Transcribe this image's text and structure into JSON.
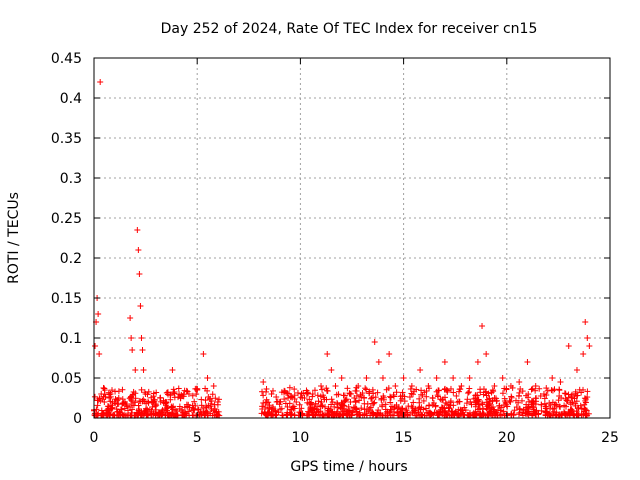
{
  "chart_data": {
    "type": "scatter",
    "title": "Day 252 of 2024, Rate Of TEC Index for receiver cn15",
    "xlabel": "GPS time / hours",
    "ylabel": "ROTI / TECUs",
    "xlim": [
      0,
      25
    ],
    "ylim": [
      0,
      0.45
    ],
    "x_ticks": [
      0,
      5,
      10,
      15,
      20,
      25
    ],
    "y_ticks": [
      0,
      0.05,
      0.1,
      0.15,
      0.2,
      0.25,
      0.3,
      0.35,
      0.4,
      0.45
    ],
    "x_tick_labels": [
      "0",
      "5",
      "10",
      "15",
      "20",
      "25"
    ],
    "y_tick_labels": [
      "0",
      "0.05",
      "0.1",
      "0.15",
      "0.2",
      "0.25",
      "0.3",
      "0.35",
      "0.4",
      "0.45"
    ],
    "grid": true,
    "marker": "+",
    "color": "#ff0000",
    "series": [
      {
        "name": "ROTI",
        "x": [
          0.05,
          0.1,
          0.15,
          0.2,
          0.25,
          0.3,
          0.35,
          0.5,
          0.8,
          1.0,
          1.2,
          1.5,
          1.75,
          1.8,
          1.85,
          2.0,
          2.1,
          2.15,
          2.2,
          2.25,
          2.3,
          2.35,
          2.4,
          2.5,
          2.8,
          3.2,
          3.5,
          3.8,
          4.2,
          4.6,
          5.0,
          5.3,
          5.5,
          5.8,
          6.0,
          8.2,
          8.6,
          9.0,
          9.4,
          9.8,
          10.2,
          10.6,
          11.0,
          11.3,
          11.5,
          11.7,
          12.0,
          12.4,
          12.8,
          13.2,
          13.6,
          13.8,
          14.0,
          14.3,
          14.6,
          15.0,
          15.4,
          15.8,
          16.2,
          16.6,
          17.0,
          17.4,
          17.8,
          18.2,
          18.6,
          18.8,
          19.0,
          19.4,
          19.8,
          20.2,
          20.6,
          21.0,
          21.4,
          21.8,
          22.2,
          22.6,
          23.0,
          23.4,
          23.7,
          23.8,
          23.9,
          24.0
        ],
        "y": [
          0.09,
          0.12,
          0.15,
          0.13,
          0.08,
          0.42,
          0.03,
          0.02,
          0.03,
          0.02,
          0.025,
          0.02,
          0.125,
          0.1,
          0.085,
          0.06,
          0.235,
          0.21,
          0.18,
          0.14,
          0.1,
          0.085,
          0.06,
          0.03,
          0.02,
          0.025,
          0.02,
          0.06,
          0.025,
          0.03,
          0.035,
          0.08,
          0.05,
          0.04,
          0.02,
          0.045,
          0.03,
          0.02,
          0.025,
          0.02,
          0.025,
          0.03,
          0.04,
          0.08,
          0.06,
          0.04,
          0.05,
          0.03,
          0.04,
          0.05,
          0.095,
          0.07,
          0.05,
          0.08,
          0.04,
          0.05,
          0.04,
          0.06,
          0.04,
          0.05,
          0.07,
          0.05,
          0.04,
          0.05,
          0.07,
          0.115,
          0.08,
          0.04,
          0.05,
          0.04,
          0.045,
          0.07,
          0.04,
          0.03,
          0.05,
          0.045,
          0.09,
          0.06,
          0.08,
          0.12,
          0.1,
          0.09
        ]
      }
    ]
  }
}
